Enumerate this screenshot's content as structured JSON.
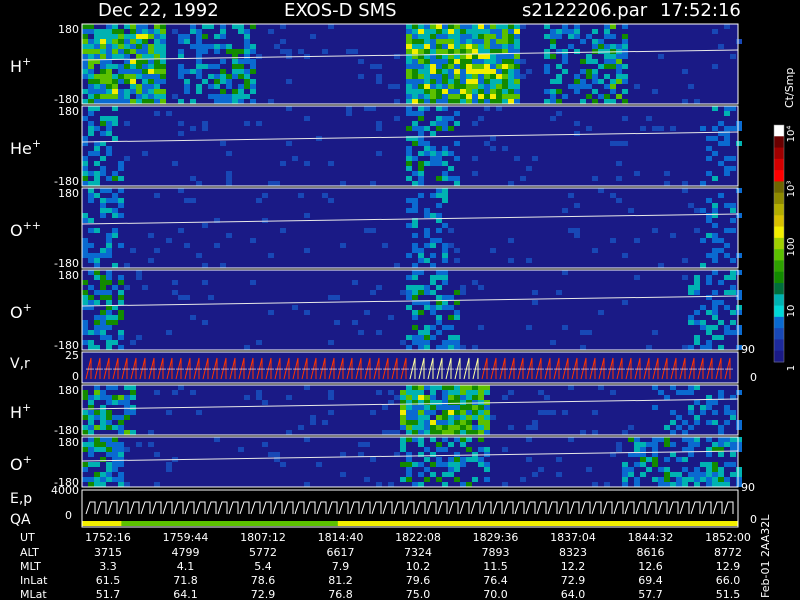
{
  "header": {
    "date": "Dec 22, 1992",
    "instrument": "EXOS-D SMS",
    "file": "s2122206.par",
    "time": "17:52:16"
  },
  "colorbar": {
    "unit_label": "Ct/Smp",
    "tick_labels": [
      "1",
      "10",
      "100",
      "10³",
      "10⁴"
    ],
    "colors": [
      "#ffffff",
      "#6a0000",
      "#a00000",
      "#d40000",
      "#ff0000",
      "#6e6600",
      "#8f8a00",
      "#b3ad00",
      "#d8c000",
      "#f2ee00",
      "#9fd000",
      "#5cc000",
      "#2ea100",
      "#128a00",
      "#006f3c",
      "#00b2b2",
      "#00d8d8",
      "#0a6ad0",
      "#1848b6",
      "#1d2a9c",
      "#1a1a86"
    ]
  },
  "chart_data": {
    "type": "heatmap",
    "panels": [
      {
        "id": "h-plus-1",
        "ion": "H",
        "charge": "+",
        "ylim": [
          -180,
          180
        ],
        "ytick_labels": [
          "180",
          "-180"
        ],
        "active_spans": [
          [
            0.0,
            0.12,
            0.9
          ],
          [
            0.14,
            0.2,
            0.5
          ],
          [
            0.2,
            0.26,
            0.6
          ],
          [
            0.49,
            0.66,
            1.0
          ],
          [
            0.7,
            0.8,
            0.5
          ],
          [
            0.8,
            0.83,
            0.7
          ]
        ]
      },
      {
        "id": "he-plus",
        "ion": "He",
        "charge": "+",
        "ylim": [
          -180,
          180
        ],
        "ytick_labels": [
          "180",
          "-180"
        ],
        "active_spans": [
          [
            0.0,
            0.06,
            0.5
          ],
          [
            0.49,
            0.57,
            0.5
          ],
          [
            0.94,
            1.0,
            0.3
          ]
        ]
      },
      {
        "id": "o-plus-plus",
        "ion": "O",
        "charge": "++",
        "ylim": [
          -180,
          180
        ],
        "ytick_labels": [
          "180",
          "-180"
        ],
        "active_spans": [
          [
            0.0,
            0.06,
            0.4
          ],
          [
            0.49,
            0.55,
            0.4
          ],
          [
            0.94,
            1.0,
            0.3
          ]
        ]
      },
      {
        "id": "o-plus-1",
        "ion": "O",
        "charge": "+",
        "ylim": [
          -180,
          180
        ],
        "ytick_labels": [
          "180",
          "-180"
        ],
        "active_spans": [
          [
            0.0,
            0.06,
            0.6
          ],
          [
            0.49,
            0.57,
            0.5
          ],
          [
            0.92,
            1.0,
            0.4
          ]
        ]
      },
      {
        "id": "h-plus-2",
        "ion": "H",
        "charge": "+",
        "ylim": [
          -180,
          180
        ],
        "ytick_labels": [
          "180",
          "-180"
        ],
        "active_spans": [
          [
            0.0,
            0.08,
            0.7
          ],
          [
            0.48,
            0.62,
            0.9
          ],
          [
            0.86,
            1.0,
            0.3
          ]
        ]
      },
      {
        "id": "o-plus-2",
        "ion": "O",
        "charge": "+",
        "ylim": [
          -180,
          180
        ],
        "ytick_labels": [
          "180",
          "-180"
        ],
        "active_spans": [
          [
            0.0,
            0.06,
            0.6
          ],
          [
            0.48,
            0.62,
            0.5
          ],
          [
            0.82,
            1.0,
            0.5
          ]
        ]
      }
    ],
    "velocity_panel": {
      "label": "V,r",
      "ytick_labels": [
        "25",
        "0"
      ],
      "right_labels": [
        "90",
        "0"
      ],
      "ylim": [
        0,
        25
      ]
    },
    "energy_panel": {
      "label_top": "E,p",
      "label_bottom": "QA",
      "ytick_labels": [
        "4000",
        "0"
      ],
      "right_labels": [
        "90",
        "0"
      ],
      "ylim": [
        0,
        4000
      ]
    },
    "ephemeris": {
      "labels": [
        "UT",
        "ALT",
        "MLT",
        "InLat",
        "MLat"
      ],
      "rows": [
        [
          "1752:16",
          "1759:44",
          "1807:12",
          "1814:40",
          "1822:08",
          "1829:36",
          "1837:04",
          "1844:32",
          "1852:00"
        ],
        [
          "3715",
          "4799",
          "5772",
          "6617",
          "7324",
          "7893",
          "8323",
          "8616",
          "8772"
        ],
        [
          "3.3",
          "4.1",
          "5.4",
          "7.9",
          "10.2",
          "11.5",
          "12.2",
          "12.6",
          "12.9"
        ],
        [
          "61.5",
          "71.8",
          "78.6",
          "81.2",
          "79.6",
          "76.4",
          "72.9",
          "69.4",
          "66.0"
        ],
        [
          "51.7",
          "64.1",
          "72.9",
          "76.8",
          "75.0",
          "70.0",
          "64.0",
          "57.7",
          "51.5"
        ]
      ]
    },
    "side_note": "Feb-01 2AA32L"
  }
}
